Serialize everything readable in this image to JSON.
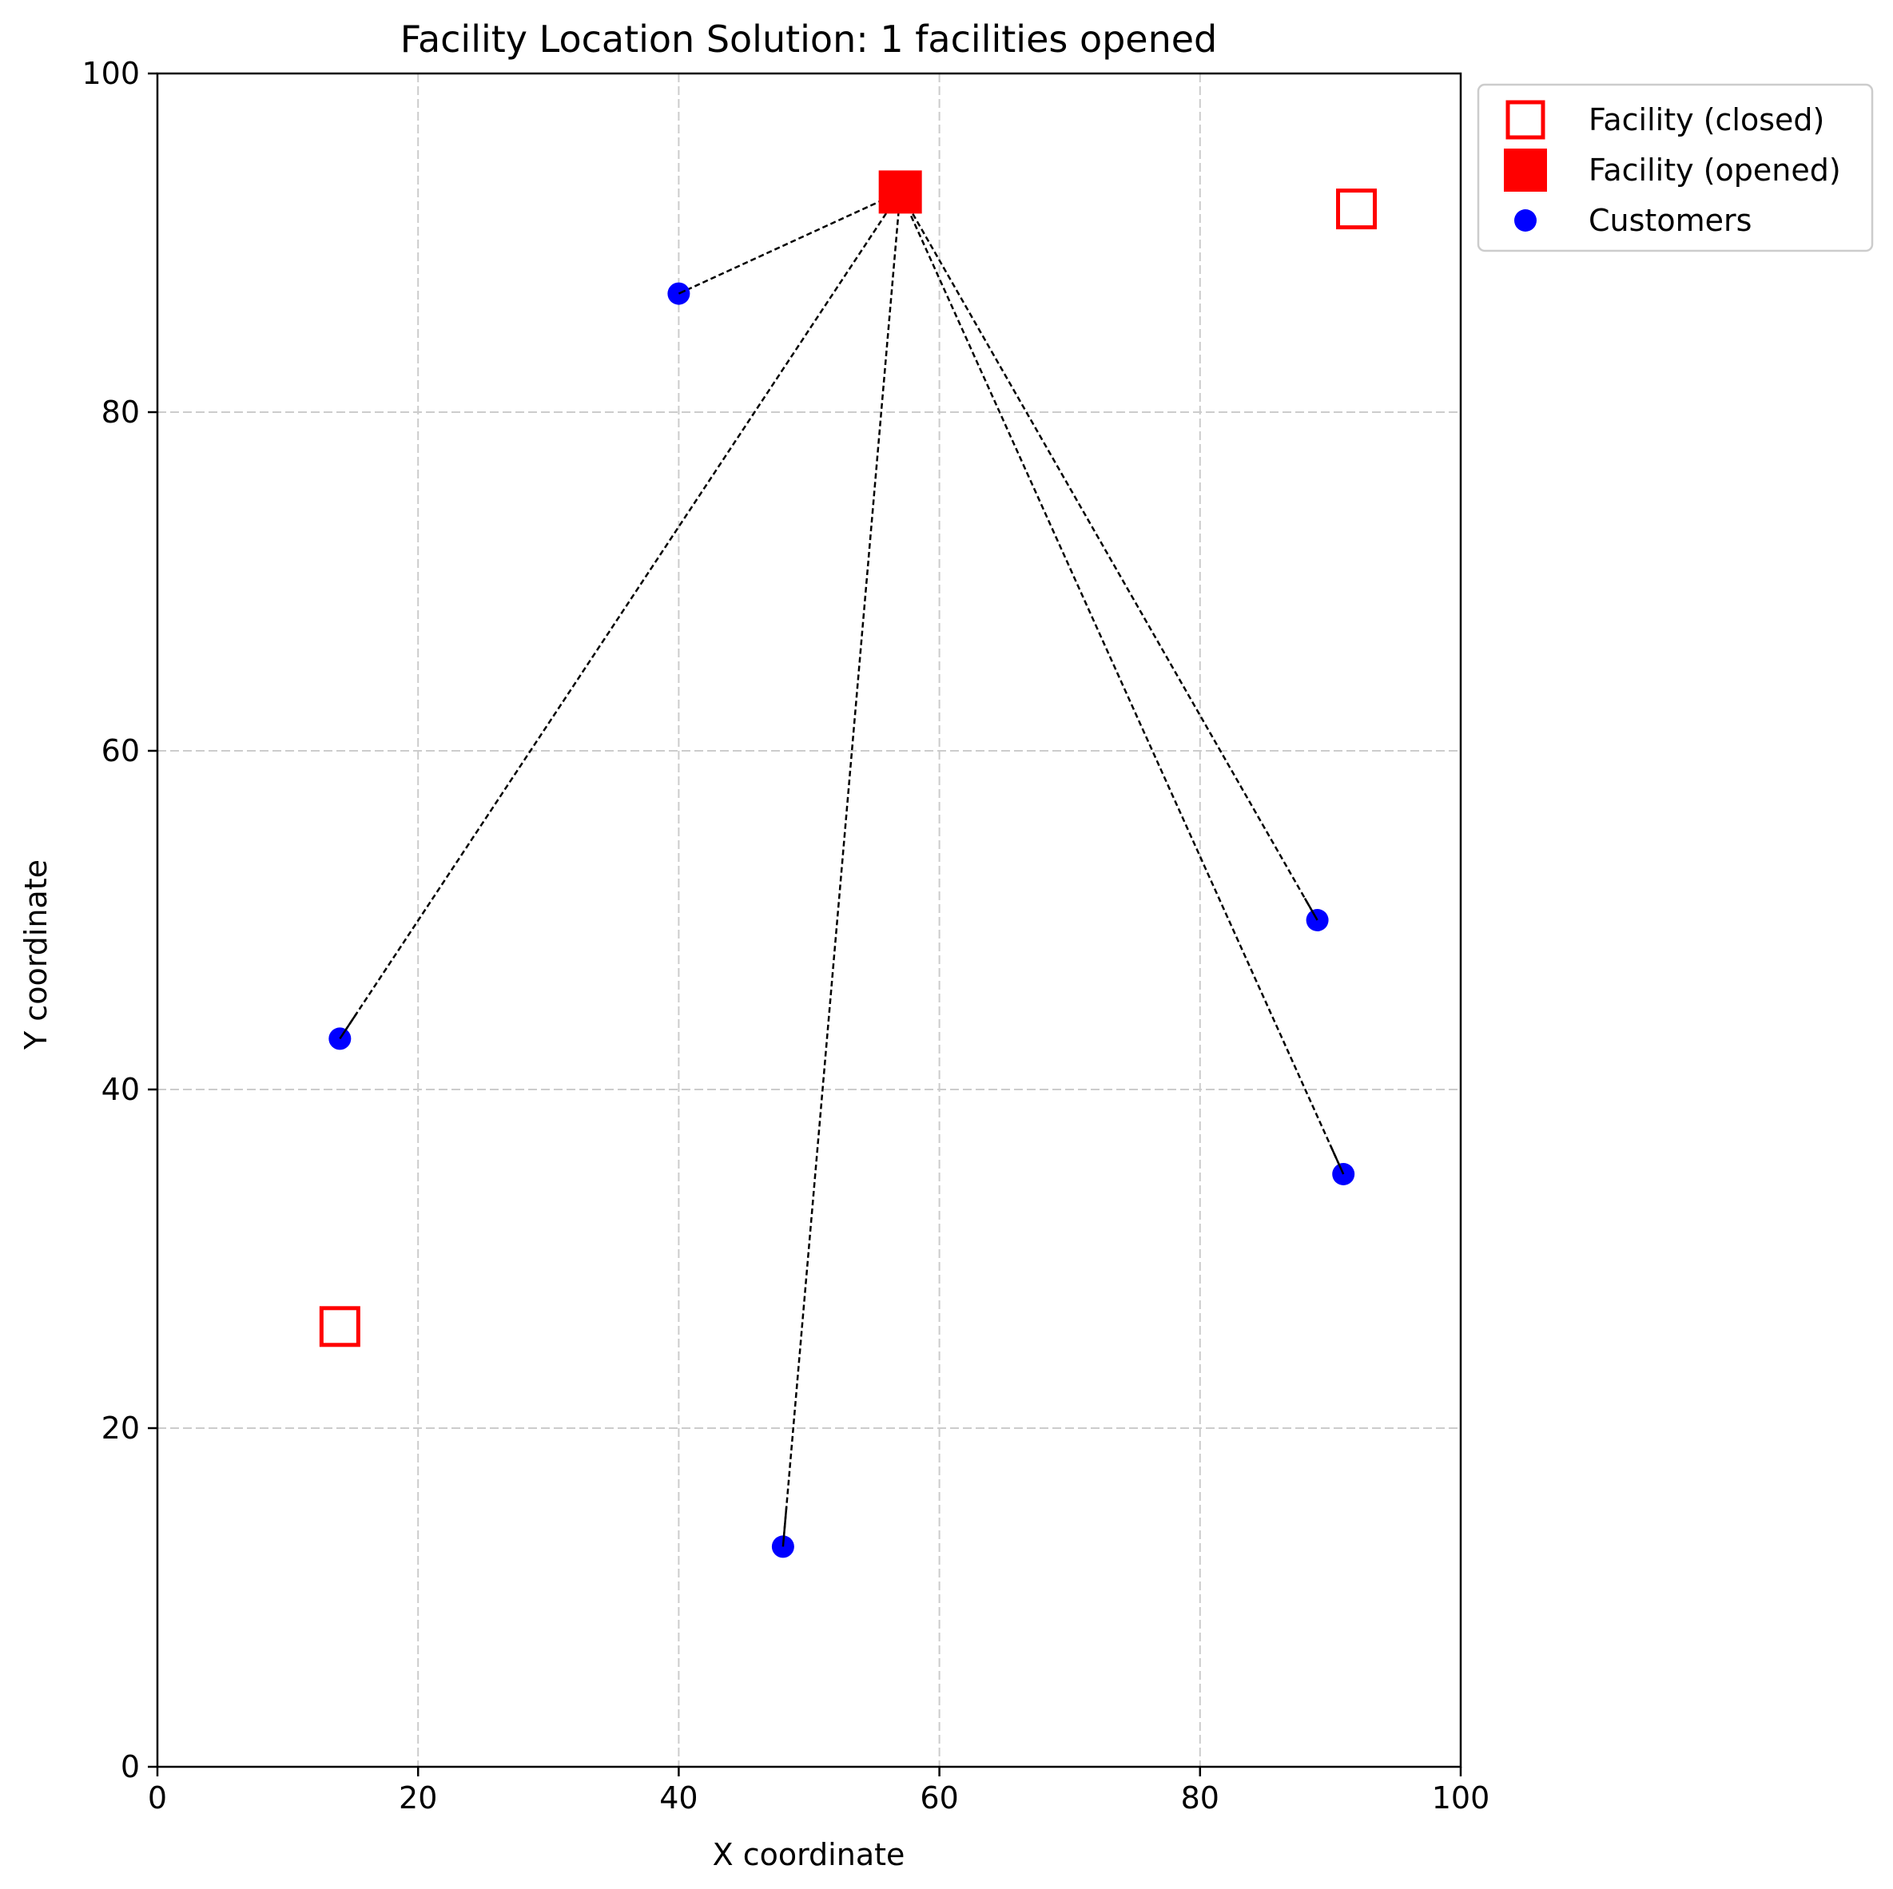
{
  "chart_data": {
    "type": "scatter",
    "title": "Facility Location Solution: 1 facilities opened",
    "xlabel": "X coordinate",
    "ylabel": "Y coordinate",
    "xlim": [
      0,
      100
    ],
    "ylim": [
      0,
      100
    ],
    "xticks": [
      0,
      20,
      40,
      60,
      80,
      100
    ],
    "yticks": [
      0,
      20,
      40,
      60,
      80,
      100
    ],
    "grid": true,
    "grid_style": "dashed",
    "legend_position": "outside-upper-right",
    "legend": [
      {
        "label": "Facility (closed)",
        "marker": "square-open",
        "color": "#ff0000"
      },
      {
        "label": "Facility (opened)",
        "marker": "square-filled",
        "color": "#ff0000"
      },
      {
        "label": "Customers",
        "marker": "circle",
        "color": "#0000ff"
      }
    ],
    "facilities_closed": [
      {
        "x": 14,
        "y": 26
      },
      {
        "x": 92,
        "y": 92
      }
    ],
    "facilities_opened": [
      {
        "x": 57,
        "y": 93
      }
    ],
    "customers": [
      {
        "x": 40,
        "y": 87
      },
      {
        "x": 14,
        "y": 43
      },
      {
        "x": 48,
        "y": 13
      },
      {
        "x": 89,
        "y": 50
      },
      {
        "x": 91,
        "y": 35
      }
    ],
    "assignments": [
      {
        "from": {
          "x": 40,
          "y": 87
        },
        "to": {
          "x": 57,
          "y": 93
        }
      },
      {
        "from": {
          "x": 14,
          "y": 43
        },
        "to": {
          "x": 57,
          "y": 93
        }
      },
      {
        "from": {
          "x": 48,
          "y": 13
        },
        "to": {
          "x": 57,
          "y": 93
        }
      },
      {
        "from": {
          "x": 89,
          "y": 50
        },
        "to": {
          "x": 57,
          "y": 93
        }
      },
      {
        "from": {
          "x": 91,
          "y": 35
        },
        "to": {
          "x": 57,
          "y": 93
        }
      }
    ],
    "colors": {
      "facility": "#ff0000",
      "customer": "#0000ff",
      "assignment_line": "#000000",
      "grid": "#cccccc"
    }
  }
}
